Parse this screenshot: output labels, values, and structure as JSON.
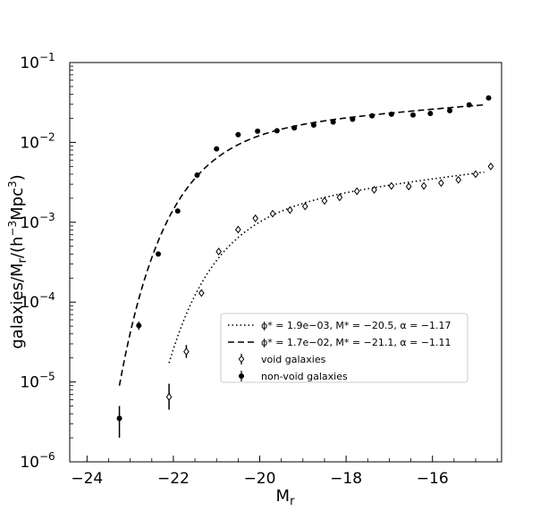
{
  "chart_data": {
    "type": "scatter",
    "title": "",
    "xlabel": "M_r",
    "ylabel": "galaxies/M_r/(h^-3 Mpc^3)",
    "xlim": [
      -24.4,
      -14.4
    ],
    "ylim": [
      1e-06,
      0.1
    ],
    "yscale": "log",
    "grid": false,
    "legend_position": "lower-right",
    "x_ticks": [
      {
        "value": -24,
        "label": "−24"
      },
      {
        "value": -22,
        "label": "−22"
      },
      {
        "value": -20,
        "label": "−20"
      },
      {
        "value": -18,
        "label": "−18"
      },
      {
        "value": -16,
        "label": "−16"
      }
    ],
    "y_ticks": [
      {
        "value": 1e-06,
        "label": "10",
        "exp": "−6"
      },
      {
        "value": 1e-05,
        "label": "10",
        "exp": "−5"
      },
      {
        "value": 0.0001,
        "label": "10",
        "exp": "−4"
      },
      {
        "value": 0.001,
        "label": "10",
        "exp": "−3"
      },
      {
        "value": 0.01,
        "label": "10",
        "exp": "−2"
      },
      {
        "value": 0.1,
        "label": "10",
        "exp": "−1"
      }
    ],
    "series": [
      {
        "name": "ϕ* = 1.9e−03, M* = −20.5, α = −1.17",
        "kind": "schechter-fit",
        "line_style": "dotted",
        "phi_star": 0.0019,
        "m_star": -20.5,
        "alpha": -1.17,
        "x_range": [
          -22.1,
          -14.8
        ]
      },
      {
        "name": "ϕ* = 1.7e−02, M* = −21.1, α = −1.11",
        "kind": "schechter-fit",
        "line_style": "dashed",
        "phi_star": 0.017,
        "m_star": -21.1,
        "alpha": -1.11,
        "x_range": [
          -23.25,
          -14.8
        ]
      },
      {
        "name": "void galaxies",
        "kind": "points",
        "marker": "open-diamond",
        "points": [
          {
            "x": -22.1,
            "y": 6.5e-06,
            "lo": 4.5e-06,
            "hi": 9.5e-06
          },
          {
            "x": -21.7,
            "y": 2.4e-05,
            "lo": 2e-05,
            "hi": 2.9e-05
          },
          {
            "x": -21.35,
            "y": 0.00013
          },
          {
            "x": -20.95,
            "y": 0.00043
          },
          {
            "x": -20.5,
            "y": 0.00081
          },
          {
            "x": -20.1,
            "y": 0.00112
          },
          {
            "x": -19.7,
            "y": 0.00128
          },
          {
            "x": -19.3,
            "y": 0.00142
          },
          {
            "x": -18.95,
            "y": 0.00158
          },
          {
            "x": -18.5,
            "y": 0.00185
          },
          {
            "x": -18.15,
            "y": 0.00205
          },
          {
            "x": -17.75,
            "y": 0.00245
          },
          {
            "x": -17.35,
            "y": 0.00255
          },
          {
            "x": -16.95,
            "y": 0.00285
          },
          {
            "x": -16.55,
            "y": 0.0028
          },
          {
            "x": -16.2,
            "y": 0.00285
          },
          {
            "x": -15.8,
            "y": 0.0031
          },
          {
            "x": -15.4,
            "y": 0.0034
          },
          {
            "x": -15.0,
            "y": 0.004
          },
          {
            "x": -14.65,
            "y": 0.005
          }
        ]
      },
      {
        "name": "non-void galaxies",
        "kind": "points",
        "marker": "filled-circle",
        "points": [
          {
            "x": -23.25,
            "y": 3.5e-06,
            "lo": 2e-06,
            "hi": 5e-06
          },
          {
            "x": -22.8,
            "y": 5.1e-05,
            "lo": 4.5e-05,
            "hi": 5.7e-05
          },
          {
            "x": -22.35,
            "y": 0.0004
          },
          {
            "x": -21.9,
            "y": 0.00138
          },
          {
            "x": -21.45,
            "y": 0.0039
          },
          {
            "x": -21.0,
            "y": 0.0083
          },
          {
            "x": -20.5,
            "y": 0.0125
          },
          {
            "x": -20.05,
            "y": 0.0138
          },
          {
            "x": -19.6,
            "y": 0.014
          },
          {
            "x": -19.2,
            "y": 0.0152
          },
          {
            "x": -18.75,
            "y": 0.0165
          },
          {
            "x": -18.3,
            "y": 0.018
          },
          {
            "x": -17.85,
            "y": 0.0195
          },
          {
            "x": -17.4,
            "y": 0.0215
          },
          {
            "x": -16.95,
            "y": 0.0225
          },
          {
            "x": -16.45,
            "y": 0.022
          },
          {
            "x": -16.05,
            "y": 0.023
          },
          {
            "x": -15.6,
            "y": 0.025
          },
          {
            "x": -15.15,
            "y": 0.0295
          },
          {
            "x": -14.7,
            "y": 0.036
          }
        ]
      }
    ],
    "legend": [
      {
        "label": "ϕ* = 1.9e−03, M* = −20.5, α = −1.17",
        "marker": "dotted-line"
      },
      {
        "label": "ϕ* = 1.7e−02, M* = −21.1, α = −1.11",
        "marker": "dashed-line"
      },
      {
        "label": "void galaxies",
        "marker": "open-diamond"
      },
      {
        "label": "non-void galaxies",
        "marker": "filled-circle"
      }
    ]
  }
}
